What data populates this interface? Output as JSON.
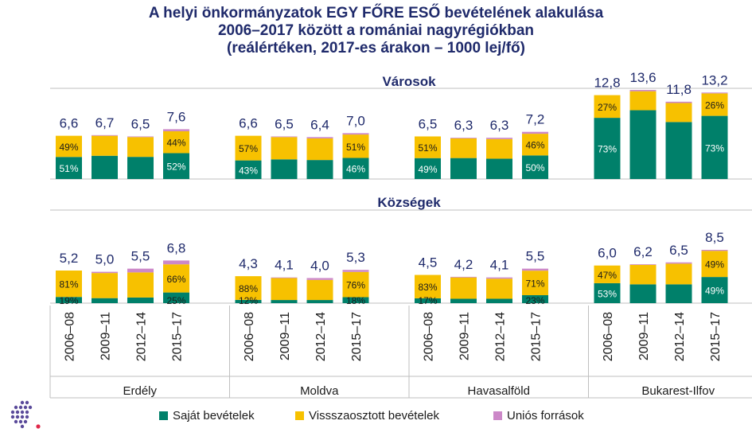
{
  "title": {
    "line1": "A helyi  önkormányzatok  EGY FŐRE ESŐ bevételének alakulása",
    "line2": "2006–2017 között a romániai  nagyrégiókban",
    "line3": "(reálértéken,  2017-es árakon – 1000 lej/fő)"
  },
  "colors": {
    "own": "#00806a",
    "redistributed": "#f7c100",
    "eu": "#cc88c8",
    "text": "#1f2a6b"
  },
  "legend": {
    "own": "Saját bevételek",
    "redistributed": "Vissszaosztott bevételek",
    "eu": "Uniós források"
  },
  "logo_icon": "dots-logo-icon",
  "chart_data": {
    "type": "bar",
    "stacked": true,
    "unit": "1000 lej/fő",
    "periods": [
      "2006–08",
      "2009–11",
      "2012–14",
      "2015–17"
    ],
    "regions": [
      "Erdély",
      "Moldva",
      "Havasalföld",
      "Bukarest-Ilfov"
    ],
    "panels": [
      {
        "label": "Városok",
        "ylim": [
          0,
          13.6
        ],
        "groups": [
          {
            "region": "Erdély",
            "totals": [
              "6,6",
              "6,7",
              "6,5",
              "7,6"
            ],
            "own": [
              3.37,
              3.55,
              3.38,
              3.95
            ],
            "redistributed": [
              3.23,
              3.05,
              3.02,
              3.34
            ],
            "eu": [
              0.0,
              0.1,
              0.1,
              0.31
            ],
            "own_pct": [
              "51%",
              "",
              "",
              "52%"
            ],
            "red_pct": [
              "49%",
              "",
              "",
              "44%"
            ]
          },
          {
            "region": "Moldva",
            "totals": [
              "6,6",
              "6,5",
              "6,4",
              "7,0"
            ],
            "own": [
              2.84,
              3.0,
              2.9,
              3.22
            ],
            "redistributed": [
              3.76,
              3.4,
              3.3,
              3.57
            ],
            "eu": [
              0.0,
              0.1,
              0.2,
              0.21
            ],
            "own_pct": [
              "43%",
              "",
              "",
              "46%"
            ],
            "red_pct": [
              "57%",
              "",
              "",
              "51%"
            ]
          },
          {
            "region": "Havasalföld",
            "totals": [
              "6,5",
              "6,3",
              "6,3",
              "7,2"
            ],
            "own": [
              3.19,
              3.2,
              3.1,
              3.6
            ],
            "redistributed": [
              3.31,
              3.0,
              3.0,
              3.31
            ],
            "eu": [
              0.0,
              0.1,
              0.2,
              0.29
            ],
            "own_pct": [
              "49%",
              "",
              "",
              "50%"
            ],
            "red_pct": [
              "51%",
              "",
              "",
              "46%"
            ]
          },
          {
            "region": "Bukarest-Ilfov",
            "totals": [
              "12,8",
              "13,6",
              "11,8",
              "13,2"
            ],
            "own": [
              9.34,
              10.5,
              8.7,
              9.64
            ],
            "redistributed": [
              3.46,
              2.9,
              2.9,
              3.43
            ],
            "eu": [
              0.0,
              0.2,
              0.2,
              0.13
            ],
            "own_pct": [
              "73%",
              "",
              "",
              "73%"
            ],
            "red_pct": [
              "27%",
              "",
              "",
              "26%"
            ]
          }
        ]
      },
      {
        "label": "Községek",
        "ylim": [
          0,
          8.5
        ],
        "groups": [
          {
            "region": "Erdély",
            "totals": [
              "5,2",
              "5,0",
              "5,5",
              "6,8"
            ],
            "own": [
              0.99,
              0.8,
              0.9,
              1.7
            ],
            "redistributed": [
              4.21,
              4.0,
              4.0,
              4.49
            ],
            "eu": [
              0.0,
              0.2,
              0.6,
              0.61
            ],
            "own_pct": [
              "19%",
              "",
              "",
              "25%"
            ],
            "red_pct": [
              "81%",
              "",
              "",
              "66%"
            ]
          },
          {
            "region": "Moldva",
            "totals": [
              "4,3",
              "4,1",
              "4,0",
              "5,3"
            ],
            "own": [
              0.52,
              0.5,
              0.5,
              0.95
            ],
            "redistributed": [
              3.78,
              3.5,
              3.2,
              4.03
            ],
            "eu": [
              0.0,
              0.1,
              0.3,
              0.32
            ],
            "own_pct": [
              "12%",
              "",
              "",
              "18%"
            ],
            "red_pct": [
              "88%",
              "",
              "",
              "76%"
            ]
          },
          {
            "region": "Havasalföld",
            "totals": [
              "4,5",
              "4,2",
              "4,1",
              "5,5"
            ],
            "own": [
              0.77,
              0.7,
              0.7,
              1.27
            ],
            "redistributed": [
              3.73,
              3.4,
              3.2,
              3.91
            ],
            "eu": [
              0.0,
              0.1,
              0.2,
              0.32
            ],
            "own_pct": [
              "17%",
              "",
              "",
              "23%"
            ],
            "red_pct": [
              "83%",
              "",
              "",
              "71%"
            ]
          },
          {
            "region": "Bukarest-Ilfov",
            "totals": [
              "6,0",
              "6,2",
              "6,5",
              "8,5"
            ],
            "own": [
              3.18,
              3.0,
              3.0,
              4.17
            ],
            "redistributed": [
              2.82,
              3.1,
              3.3,
              4.17
            ],
            "eu": [
              0.0,
              0.1,
              0.2,
              0.16
            ],
            "own_pct": [
              "53%",
              "",
              "",
              "49%"
            ],
            "red_pct": [
              "47%",
              "",
              "",
              "49%"
            ]
          }
        ]
      }
    ]
  }
}
